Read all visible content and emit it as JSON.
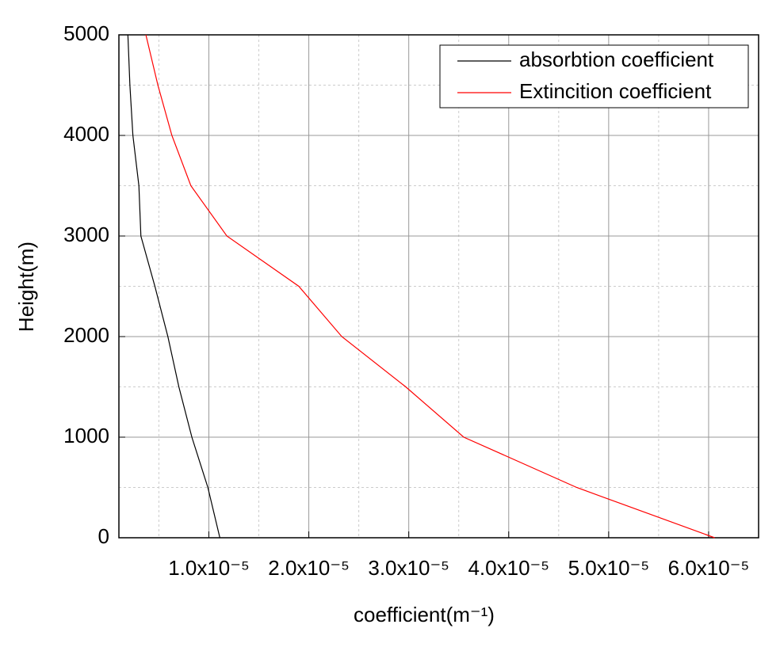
{
  "chart_data": {
    "type": "line",
    "orientation": "vertical",
    "xlabel": "coefficient(m⁻¹)",
    "ylabel": "Height(m)",
    "y": [
      0,
      500,
      1000,
      1500,
      2000,
      2500,
      3000,
      3500,
      4000,
      4500,
      5000
    ],
    "series": [
      {
        "name": "absorbtion coefficient",
        "color": "#000000",
        "values": [
          1.11e-05,
          9.9e-06,
          8.3e-06,
          7e-06,
          5.9e-06,
          4.6e-06,
          3.2e-06,
          3e-06,
          2.4e-06,
          2.1e-06,
          1.9e-06
        ]
      },
      {
        "name": "Extincition coefficient",
        "color": "#ff0000",
        "values": [
          6.06e-05,
          4.68e-05,
          3.55e-05,
          2.97e-05,
          2.33e-05,
          1.9e-05,
          1.18e-05,
          8.2e-06,
          6.3e-06,
          4.9e-06,
          3.7e-06
        ]
      }
    ],
    "xlim": [
      1e-06,
      6.5e-05
    ],
    "ylim": [
      0,
      5000
    ],
    "xticks": [
      {
        "value": 1e-05,
        "label": "1.0x10⁻⁵"
      },
      {
        "value": 2e-05,
        "label": "2.0x10⁻⁵"
      },
      {
        "value": 3e-05,
        "label": "3.0x10⁻⁵"
      },
      {
        "value": 4e-05,
        "label": "4.0x10⁻⁵"
      },
      {
        "value": 5e-05,
        "label": "5.0x10⁻⁵"
      },
      {
        "value": 6e-05,
        "label": "6.0x10⁻⁵"
      }
    ],
    "yticks": [
      0,
      1000,
      2000,
      3000,
      4000,
      5000
    ],
    "grid": true,
    "minor_grid": true,
    "legend": "upper right"
  }
}
